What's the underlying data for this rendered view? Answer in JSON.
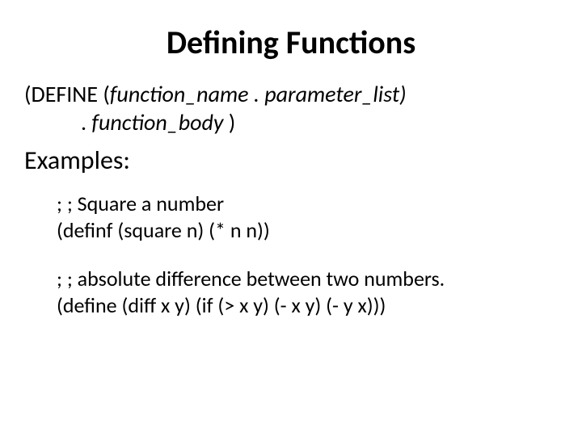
{
  "title": "Defining Functions",
  "syntax": {
    "line1_prefix": "(DEFINE (",
    "line1_italic": "function_name . parameter_list)",
    "line2_prefix": ". ",
    "line2_italic": "function_body",
    "line2_suffix": " )"
  },
  "examples_label": "Examples:",
  "example1": {
    "comment": "; ; Square a number",
    "code": "(definf (square n) (* n n))"
  },
  "example2": {
    "comment": "; ; absolute difference between two numbers.",
    "code": "(define (diff x y)  (if (> x y)  (- x y) (- y x)))"
  },
  "colors": {
    "background": "#ffffff",
    "text": "#000000"
  },
  "fonts": {
    "title_size": 40,
    "body_size": 28,
    "examples_label_size": 32,
    "example_size": 26
  }
}
